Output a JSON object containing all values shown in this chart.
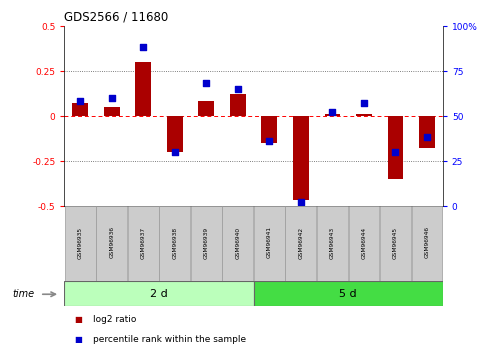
{
  "title": "GDS2566 / 11680",
  "samples": [
    "GSM96935",
    "GSM96936",
    "GSM96937",
    "GSM96938",
    "GSM96939",
    "GSM96940",
    "GSM96941",
    "GSM96942",
    "GSM96943",
    "GSM96944",
    "GSM96945",
    "GSM96946"
  ],
  "log2_ratio": [
    0.07,
    0.05,
    0.3,
    -0.2,
    0.08,
    0.12,
    -0.15,
    -0.47,
    0.01,
    0.01,
    -0.35,
    -0.18
  ],
  "percentile_rank": [
    58,
    60,
    88,
    30,
    68,
    65,
    36,
    2,
    52,
    57,
    30,
    38
  ],
  "group1_label": "2 d",
  "group2_label": "5 d",
  "group1_count": 6,
  "group2_count": 6,
  "ylim_left": [
    -0.5,
    0.5
  ],
  "ylim_right": [
    0,
    100
  ],
  "yticks_left": [
    -0.5,
    -0.25,
    0.0,
    0.25,
    0.5
  ],
  "yticks_right": [
    0,
    25,
    50,
    75,
    100
  ],
  "bar_color": "#aa0000",
  "dot_color": "#0000cc",
  "group1_bg": "#bbffbb",
  "group2_bg": "#44dd44",
  "sample_bg": "#cccccc",
  "legend_bar_label": "log2 ratio",
  "legend_dot_label": "percentile rank within the sample",
  "time_label": "time",
  "bar_width": 0.5
}
